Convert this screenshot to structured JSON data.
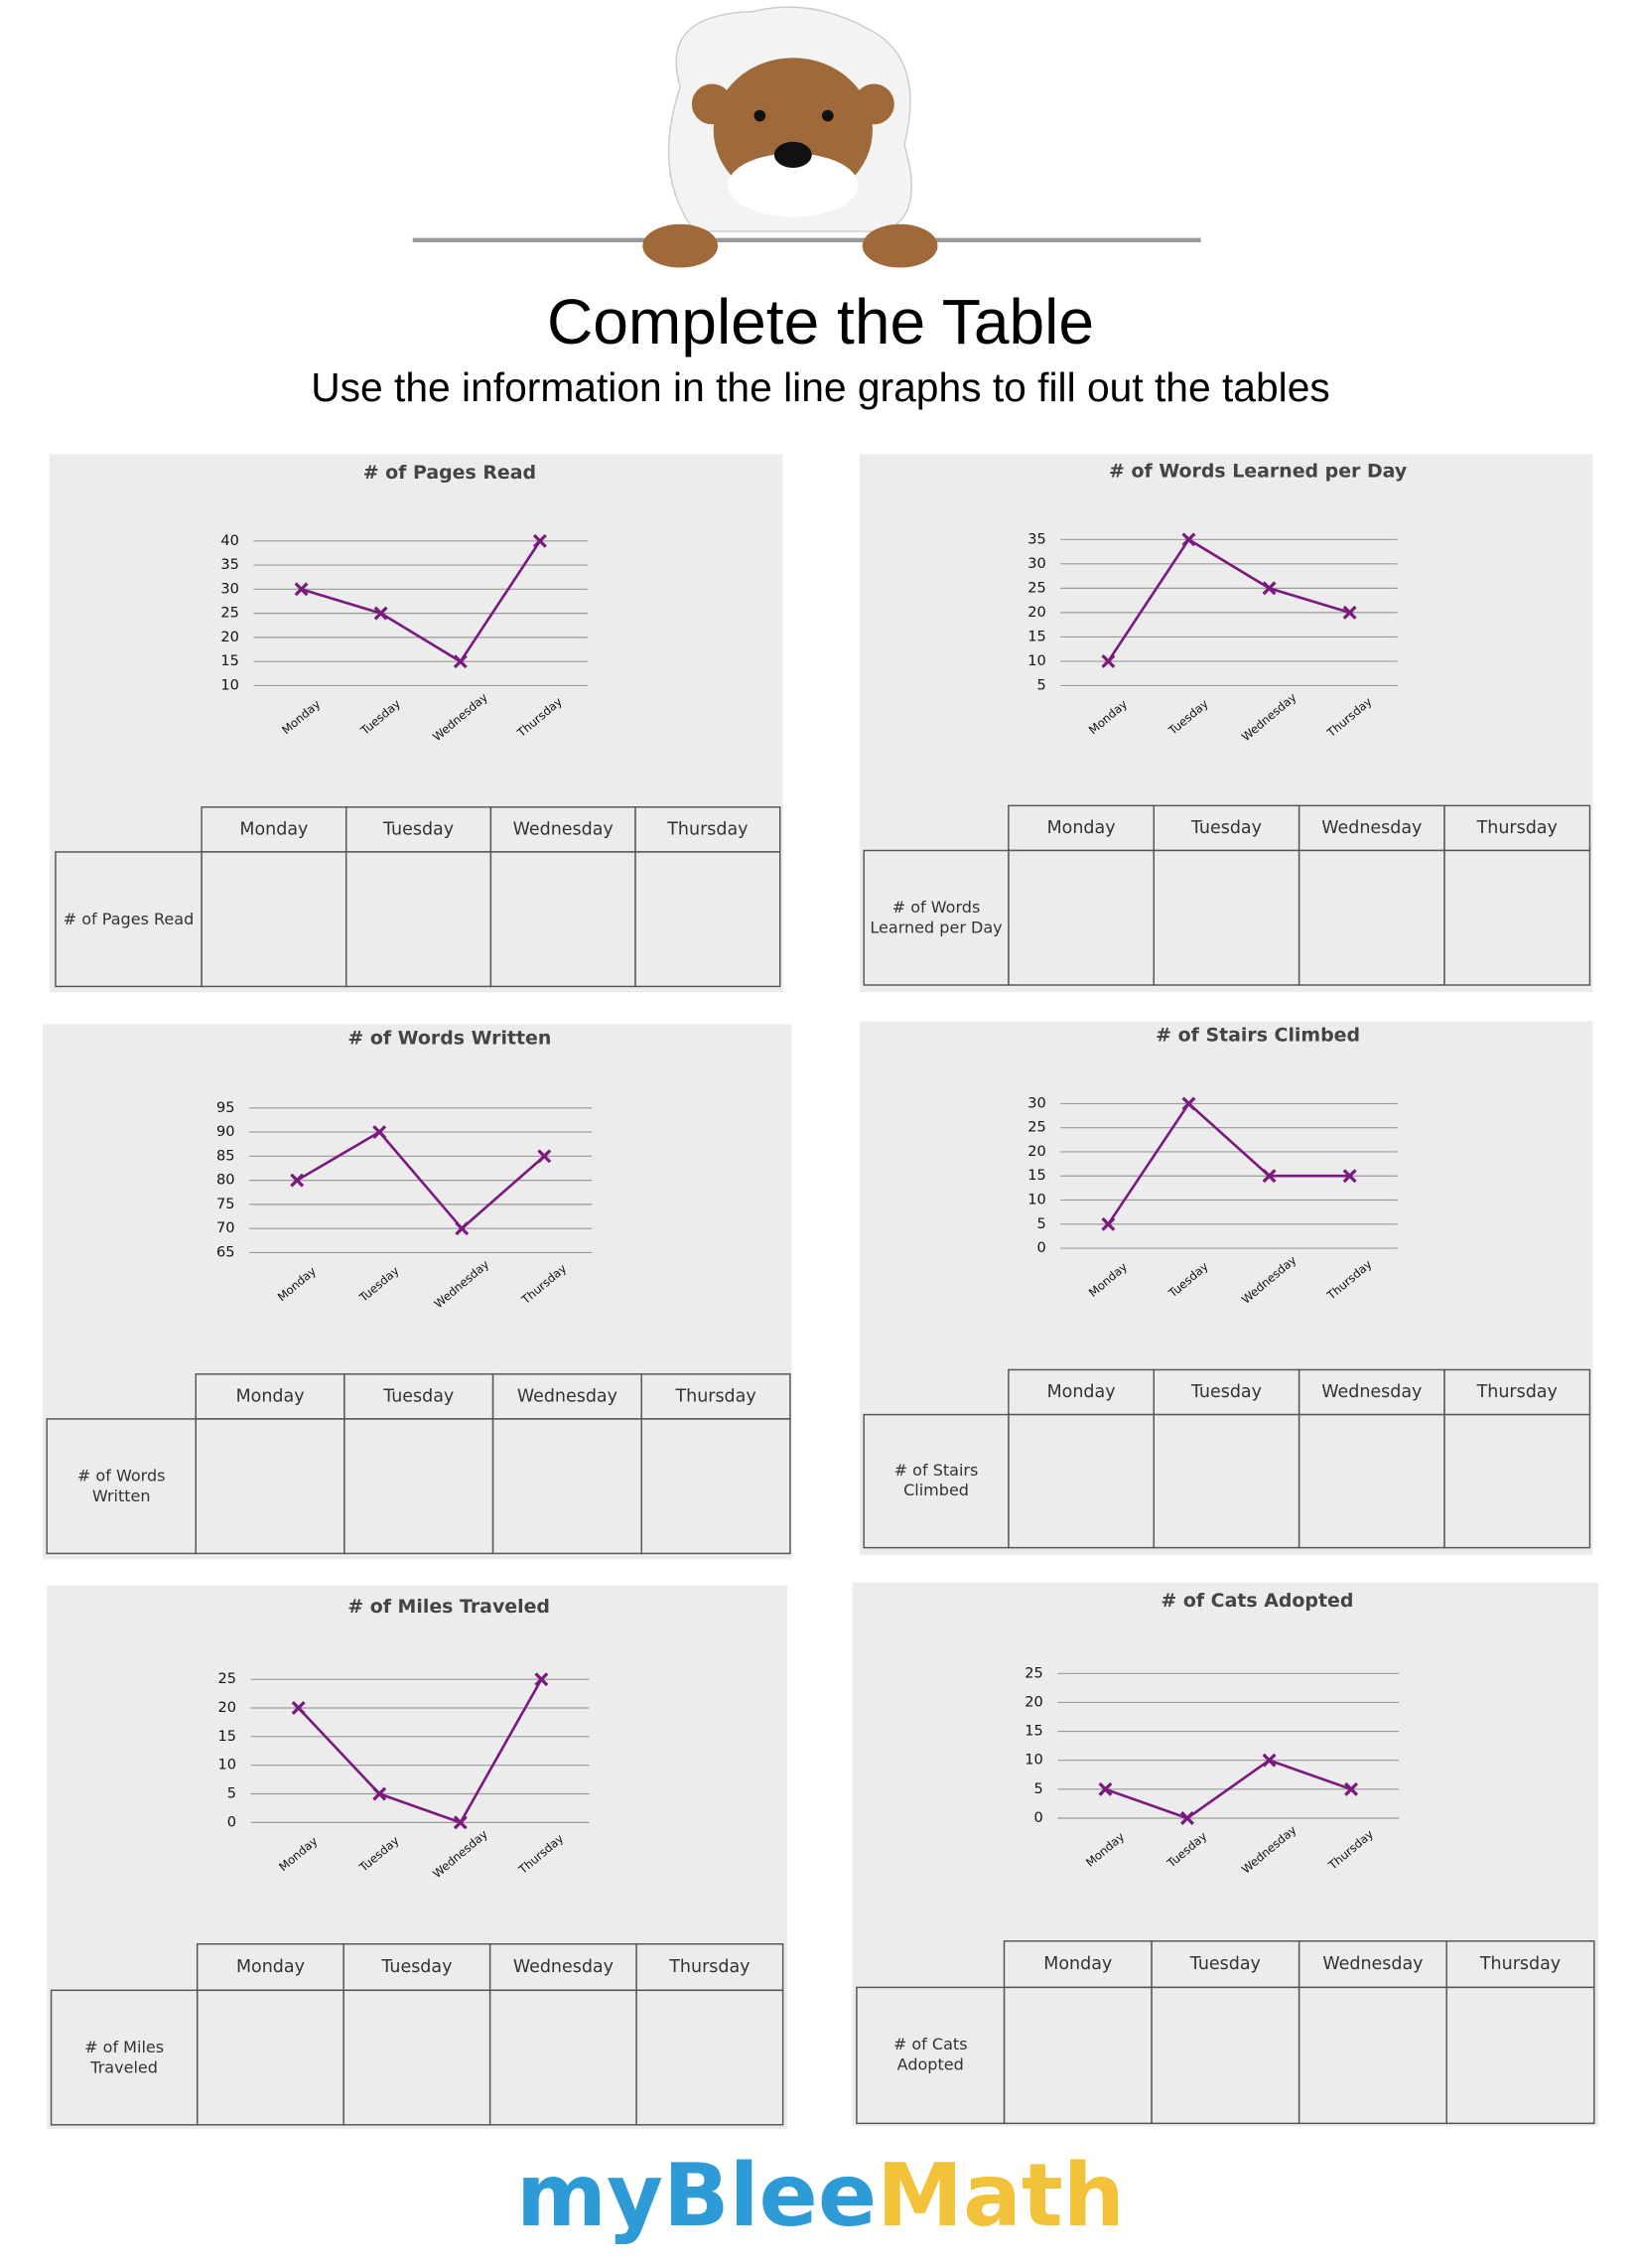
{
  "header": {
    "title": "Complete the Table",
    "subtitle": "Use the information in the line graphs to fill out the tables"
  },
  "chart_data": [
    {
      "type": "line",
      "title": "# of Pages Read",
      "categories": [
        "Monday",
        "Tuesday",
        "Wednesday",
        "Thursday"
      ],
      "values": [
        30,
        25,
        15,
        40
      ],
      "color": "#7b1a7e",
      "marker": "x",
      "ylim": [
        10,
        40
      ],
      "yticks": [
        10,
        15,
        20,
        25,
        30,
        35,
        40
      ],
      "grid": true
    },
    {
      "type": "line",
      "title": "# of Words Learned per Day",
      "categories": [
        "Monday",
        "Tuesday",
        "Wednesday",
        "Thursday"
      ],
      "values": [
        10,
        35,
        25,
        20
      ],
      "color": "#7b1a7e",
      "marker": "x",
      "ylim": [
        5,
        35
      ],
      "yticks": [
        5,
        10,
        15,
        20,
        25,
        30,
        35
      ],
      "grid": true
    },
    {
      "type": "line",
      "title": "# of Words Written",
      "categories": [
        "Monday",
        "Tuesday",
        "Wednesday",
        "Thursday"
      ],
      "values": [
        80,
        90,
        70,
        85
      ],
      "color": "#7b1a7e",
      "marker": "x",
      "ylim": [
        65,
        95
      ],
      "yticks": [
        65,
        70,
        75,
        80,
        85,
        90,
        95
      ],
      "grid": true
    },
    {
      "type": "line",
      "title": "# of Stairs Climbed",
      "categories": [
        "Monday",
        "Tuesday",
        "Wednesday",
        "Thursday"
      ],
      "values": [
        5,
        30,
        15,
        15
      ],
      "color": "#7b1a7e",
      "marker": "x",
      "ylim": [
        0,
        30
      ],
      "yticks": [
        0,
        5,
        10,
        15,
        20,
        25,
        30
      ],
      "grid": true
    },
    {
      "type": "line",
      "title": "# of Miles Traveled",
      "categories": [
        "Monday",
        "Tuesday",
        "Wednesday",
        "Thursday"
      ],
      "values": [
        20,
        5,
        0,
        25
      ],
      "color": "#7b1a7e",
      "marker": "x",
      "ylim": [
        0,
        25
      ],
      "yticks": [
        0,
        5,
        10,
        15,
        20,
        25
      ],
      "grid": true
    },
    {
      "type": "line",
      "title": "# of Cats Adopted",
      "categories": [
        "Monday",
        "Tuesday",
        "Wednesday",
        "Thursday"
      ],
      "values": [
        5,
        0,
        10,
        5
      ],
      "color": "#7b1a7e",
      "marker": "x",
      "ylim": [
        0,
        25
      ],
      "yticks": [
        0,
        5,
        10,
        15,
        20,
        25
      ],
      "grid": true
    }
  ],
  "tables": [
    {
      "columns": [
        "Monday",
        "Tuesday",
        "Wednesday",
        "Thursday"
      ],
      "row_label": "# of Pages Read"
    },
    {
      "columns": [
        "Monday",
        "Tuesday",
        "Wednesday",
        "Thursday"
      ],
      "row_label": "# of Words Learned per Day"
    },
    {
      "columns": [
        "Monday",
        "Tuesday",
        "Wednesday",
        "Thursday"
      ],
      "row_label": "# of Words Written"
    },
    {
      "columns": [
        "Monday",
        "Tuesday",
        "Wednesday",
        "Thursday"
      ],
      "row_label": "# of Stairs Climbed"
    },
    {
      "columns": [
        "Monday",
        "Tuesday",
        "Wednesday",
        "Thursday"
      ],
      "row_label": "# of Miles Traveled"
    },
    {
      "columns": [
        "Monday",
        "Tuesday",
        "Wednesday",
        "Thursday"
      ],
      "row_label": "# of Cats Adopted"
    }
  ],
  "footer": {
    "brand_first": "myBlee",
    "brand_second": "Math"
  }
}
